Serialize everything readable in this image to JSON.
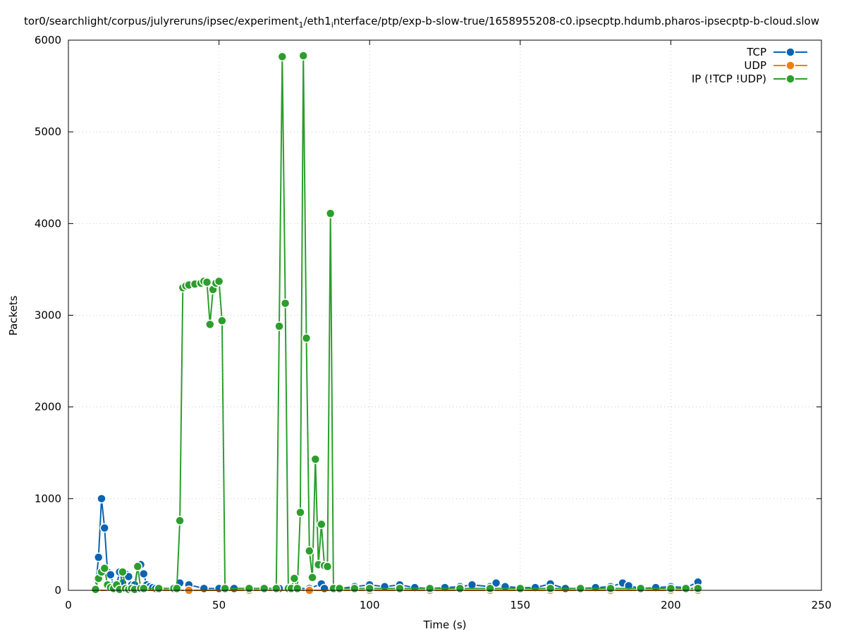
{
  "chart_data": {
    "type": "line",
    "title_parts": {
      "a": "tor0/searchlight/corpus/julyreruns/ipsec/experiment",
      "sub1": "1",
      "b": "/eth1",
      "sub2": "i",
      "c": "nterface/ptp/exp-b-slow-true/1658955208-c0.ipsecptp.hdumb.pharos-ipsecptp-b-cloud.slow"
    },
    "xlabel": "Time (s)",
    "ylabel": "Packets",
    "xlim": [
      0,
      250
    ],
    "ylim": [
      0,
      6000
    ],
    "xticks": [
      0,
      50,
      100,
      150,
      200,
      250
    ],
    "yticks": [
      0,
      1000,
      2000,
      3000,
      4000,
      5000,
      6000
    ],
    "grid": true,
    "legend_position": "top-right",
    "series": [
      {
        "name": "TCP",
        "color": "#0a64b2",
        "x": [
          9,
          10,
          11,
          12,
          13,
          14,
          15,
          16,
          17,
          18,
          19,
          20,
          21,
          22,
          23,
          24,
          25,
          26,
          27,
          28,
          29,
          30,
          35,
          37,
          40,
          45,
          50,
          55,
          60,
          65,
          70,
          75,
          80,
          84,
          85,
          90,
          95,
          100,
          105,
          110,
          115,
          120,
          125,
          130,
          134,
          140,
          142,
          145,
          150,
          155,
          160,
          165,
          170,
          175,
          180,
          184,
          186,
          190,
          195,
          200,
          205,
          209
        ],
        "y": [
          20,
          360,
          1000,
          680,
          200,
          170,
          60,
          60,
          200,
          80,
          180,
          150,
          60,
          60,
          250,
          280,
          180,
          60,
          40,
          30,
          20,
          20,
          20,
          80,
          60,
          20,
          20,
          20,
          20,
          20,
          20,
          20,
          20,
          70,
          20,
          20,
          40,
          60,
          40,
          60,
          30,
          20,
          30,
          40,
          60,
          40,
          80,
          40,
          30,
          30,
          70,
          20,
          20,
          30,
          40,
          80,
          50,
          20,
          30,
          40,
          30,
          90
        ]
      },
      {
        "name": "UDP",
        "color": "#f07f0c",
        "x": [
          9,
          20,
          40,
          60,
          80,
          100,
          120,
          140,
          160,
          180,
          200,
          209
        ],
        "y": [
          0,
          0,
          0,
          0,
          0,
          0,
          0,
          0,
          0,
          0,
          0,
          0
        ]
      },
      {
        "name": "IP (!TCP  !UDP)",
        "color": "#2c9e2c",
        "x": [
          9,
          10,
          11,
          12,
          13,
          14,
          15,
          16,
          17,
          18,
          19,
          20,
          21,
          22,
          23,
          24,
          25,
          30,
          35,
          36,
          37,
          38,
          39,
          40,
          42,
          44,
          45,
          46,
          47,
          48,
          49,
          50,
          51,
          52,
          60,
          65,
          69,
          70,
          71,
          72,
          73,
          74,
          75,
          76,
          77,
          78,
          79,
          80,
          81,
          82,
          83,
          84,
          85,
          86,
          87,
          88,
          90,
          95,
          100,
          110,
          120,
          130,
          140,
          150,
          160,
          170,
          180,
          190,
          200,
          205,
          209
        ],
        "y": [
          10,
          130,
          200,
          240,
          60,
          30,
          20,
          60,
          10,
          200,
          20,
          10,
          20,
          10,
          260,
          20,
          20,
          20,
          20,
          20,
          760,
          3300,
          3320,
          3330,
          3340,
          3350,
          3370,
          3360,
          2900,
          3280,
          3350,
          3370,
          2940,
          20,
          20,
          20,
          20,
          2880,
          5820,
          3130,
          20,
          20,
          130,
          20,
          850,
          5830,
          2750,
          430,
          140,
          1430,
          280,
          720,
          270,
          260,
          4110,
          20,
          20,
          20,
          20,
          20,
          20,
          20,
          20,
          20,
          20,
          20,
          20,
          20,
          20,
          20,
          20
        ]
      }
    ]
  }
}
